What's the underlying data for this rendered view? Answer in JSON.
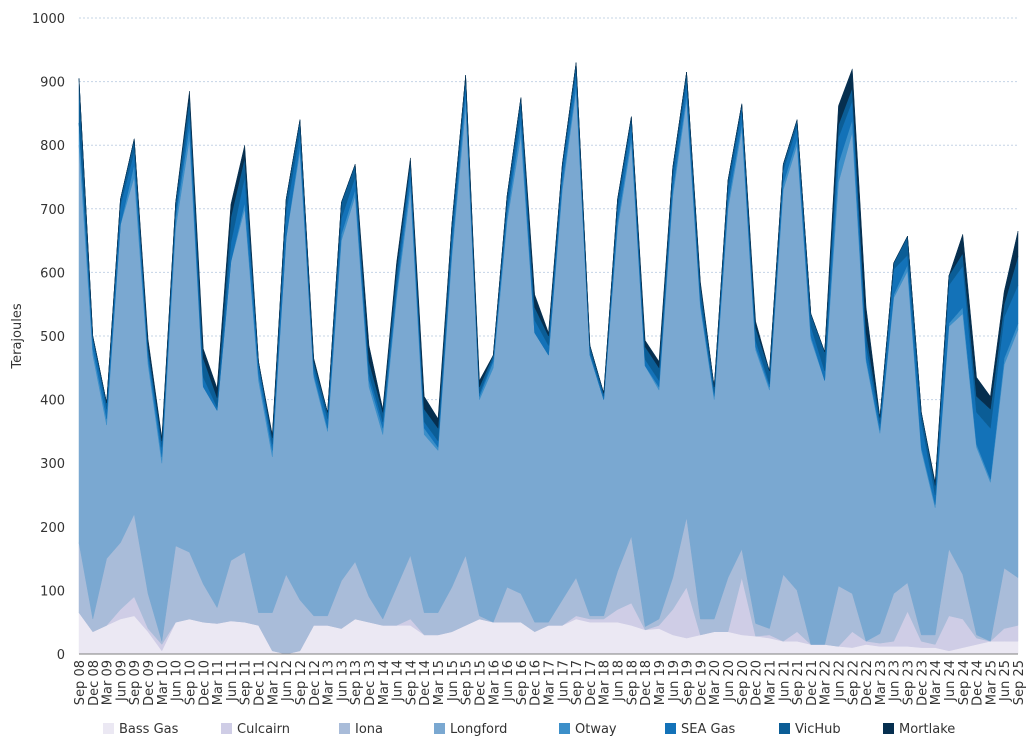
{
  "chart_data": {
    "type": "area",
    "stacked": true,
    "title": "",
    "xlabel": "",
    "ylabel": "Terajoules",
    "ylim": [
      0,
      1000
    ],
    "yticks": [
      0,
      100,
      200,
      300,
      400,
      500,
      600,
      700,
      800,
      900,
      1000
    ],
    "grid": true,
    "legend_position": "bottom",
    "categories": [
      "Sep 08",
      "Dec 08",
      "Mar 09",
      "Jun 09",
      "Sep 09",
      "Dec 09",
      "Mar 10",
      "Jun 10",
      "Sep 10",
      "Dec 10",
      "Mar 11",
      "Jun 11",
      "Sep 11",
      "Dec 11",
      "Mar 12",
      "Jun 12",
      "Sep 12",
      "Dec 12",
      "Mar 13",
      "Jun 13",
      "Sep 13",
      "Dec 13",
      "Mar 14",
      "Jun 14",
      "Sep 14",
      "Dec 14",
      "Mar 15",
      "Jun 15",
      "Sep 15",
      "Dec 15",
      "Mar 16",
      "Jun 16",
      "Sep 16",
      "Dec 16",
      "Mar 17",
      "Jun 17",
      "Sep 17",
      "Dec 17",
      "Mar 18",
      "Jun 18",
      "Sep 18",
      "Dec 18",
      "Mar 19",
      "Jun 19",
      "Sep 19",
      "Dec 19",
      "Mar 20",
      "Jun 20",
      "Sep 20",
      "Dec 20",
      "Mar 21",
      "Jun 21",
      "Sep 21",
      "Dec 21",
      "Mar 22",
      "Jun 22",
      "Sep 22",
      "Dec 22",
      "Mar 23",
      "Jun 23",
      "Sep 23",
      "Dec 23",
      "Mar 24",
      "Jun 24",
      "Sep 24",
      "Dec 24",
      "Mar 25",
      "Jun 25",
      "Sep 25"
    ],
    "series": [
      {
        "name": "Bass Gas",
        "color": "#ebe8f3",
        "values": [
          65,
          35,
          45,
          55,
          60,
          35,
          5,
          50,
          55,
          50,
          48,
          52,
          50,
          45,
          5,
          0,
          5,
          45,
          45,
          40,
          55,
          50,
          45,
          45,
          45,
          30,
          30,
          35,
          45,
          55,
          50,
          50,
          50,
          35,
          45,
          45,
          55,
          50,
          50,
          50,
          45,
          38,
          40,
          30,
          25,
          30,
          35,
          35,
          30,
          28,
          25,
          20,
          20,
          15,
          15,
          12,
          10,
          15,
          12,
          12,
          12,
          10,
          10,
          5,
          10,
          15,
          20,
          20,
          20
        ],
        "bands": [
          65,
          35,
          45,
          55,
          60,
          35,
          5,
          50,
          55,
          50,
          48,
          52,
          50,
          45,
          5,
          0,
          5,
          45,
          45,
          40,
          55,
          50,
          45,
          45,
          45,
          30,
          30,
          35,
          45,
          55,
          50,
          50,
          50,
          35,
          45,
          45,
          55,
          50,
          50,
          50,
          45,
          38,
          40,
          30,
          25,
          30,
          35,
          35,
          30,
          28,
          25,
          20,
          20,
          15,
          15,
          12,
          10,
          15,
          12,
          12,
          12,
          10,
          10,
          5,
          10,
          15,
          20,
          20,
          20
        ]
      },
      {
        "name": "Culcairn",
        "color": "#cfcde6",
        "values": [
          0,
          0,
          0,
          15,
          30,
          5,
          10,
          0,
          0,
          0,
          0,
          0,
          0,
          0,
          0,
          0,
          0,
          0,
          0,
          0,
          0,
          0,
          0,
          0,
          10,
          0,
          0,
          0,
          0,
          0,
          0,
          0,
          0,
          0,
          0,
          0,
          5,
          5,
          5,
          20,
          35,
          0,
          5,
          40,
          80,
          0,
          0,
          0,
          90,
          0,
          5,
          0,
          15,
          0,
          0,
          0,
          25,
          5,
          5,
          8,
          55,
          10,
          5,
          55,
          45,
          10,
          0,
          20,
          25
        ]
      },
      {
        "name": "Iona",
        "color": "#a9bcd9",
        "values": [
          110,
          20,
          105,
          105,
          130,
          55,
          5,
          120,
          105,
          60,
          25,
          95,
          110,
          20,
          60,
          125,
          80,
          15,
          15,
          75,
          90,
          40,
          10,
          60,
          100,
          35,
          35,
          70,
          110,
          5,
          0,
          55,
          45,
          15,
          5,
          40,
          60,
          5,
          5,
          60,
          105,
          5,
          10,
          50,
          110,
          25,
          20,
          85,
          45,
          20,
          10,
          105,
          65,
          0,
          0,
          95,
          60,
          0,
          15,
          75,
          45,
          10,
          15,
          105,
          70,
          5,
          0,
          95,
          75
        ]
      },
      {
        "name": "Longford",
        "color": "#7aa8d1",
        "values": [
          625,
          415,
          210,
          500,
          530,
          360,
          280,
          500,
          650,
          310,
          310,
          470,
          540,
          365,
          245,
          530,
          705,
          375,
          290,
          535,
          575,
          330,
          290,
          455,
          575,
          280,
          255,
          520,
          705,
          340,
          400,
          575,
          720,
          455,
          420,
          645,
          765,
          410,
          340,
          540,
          620,
          410,
          360,
          600,
          655,
          490,
          345,
          580,
          660,
          430,
          375,
          605,
          700,
          480,
          415,
          635,
          725,
          440,
          315,
          465,
          490,
          290,
          200,
          350,
          410,
          295,
          250,
          320,
          390
        ]
      },
      {
        "name": "Otway",
        "color": "#3c8fc9",
        "values": [
          35,
          10,
          10,
          0,
          20,
          10,
          10,
          15,
          20,
          0,
          0,
          0,
          10,
          10,
          10,
          0,
          10,
          5,
          5,
          10,
          10,
          10,
          10,
          10,
          15,
          10,
          5,
          10,
          20,
          5,
          10,
          10,
          20,
          0,
          0,
          10,
          10,
          0,
          0,
          10,
          10,
          0,
          5,
          10,
          10,
          5,
          5,
          10,
          10,
          5,
          5,
          10,
          10,
          5,
          0,
          30,
          20,
          5,
          5,
          5,
          10,
          5,
          5,
          5,
          10,
          5,
          5,
          10,
          10
        ]
      },
      {
        "name": "SEA Gas",
        "color": "#1372b8",
        "values": [
          0,
          15,
          15,
          30,
          20,
          10,
          15,
          10,
          20,
          15,
          5,
          30,
          40,
          15,
          10,
          40,
          20,
          10,
          15,
          25,
          20,
          10,
          10,
          15,
          20,
          10,
          10,
          20,
          15,
          5,
          5,
          15,
          20,
          20,
          15,
          20,
          20,
          5,
          5,
          20,
          20,
          10,
          10,
          20,
          20,
          10,
          5,
          20,
          20,
          10,
          5,
          20,
          20,
          15,
          15,
          40,
          30,
          20,
          10,
          40,
          15,
          40,
          15,
          60,
          65,
          50,
          80,
          65,
          60
        ]
      },
      {
        "name": "VicHub",
        "color": "#0b5d96",
        "values": [
          70,
          5,
          10,
          10,
          20,
          10,
          10,
          15,
          25,
          30,
          15,
          40,
          30,
          5,
          10,
          20,
          20,
          10,
          10,
          25,
          20,
          20,
          15,
          20,
          10,
          20,
          20,
          20,
          15,
          10,
          5,
          15,
          20,
          20,
          15,
          10,
          15,
          10,
          5,
          15,
          10,
          20,
          20,
          15,
          15,
          20,
          10,
          15,
          10,
          20,
          20,
          10,
          10,
          20,
          30,
          20,
          20,
          20,
          10,
          10,
          30,
          15,
          15,
          15,
          20,
          25,
          30,
          20,
          45
        ]
      },
      {
        "name": "Mortlake",
        "color": "#062f4f",
        "values": [
          0,
          0,
          0,
          0,
          0,
          10,
          5,
          0,
          10,
          15,
          15,
          20,
          20,
          0,
          5,
          0,
          0,
          5,
          0,
          0,
          0,
          25,
          5,
          10,
          5,
          20,
          15,
          0,
          0,
          10,
          0,
          0,
          0,
          20,
          5,
          0,
          0,
          0,
          0,
          0,
          0,
          10,
          10,
          0,
          0,
          5,
          0,
          0,
          0,
          10,
          0,
          0,
          0,
          0,
          0,
          30,
          30,
          40,
          0,
          0,
          0,
          0,
          5,
          0,
          30,
          30,
          20,
          20,
          40
        ]
      }
    ]
  }
}
